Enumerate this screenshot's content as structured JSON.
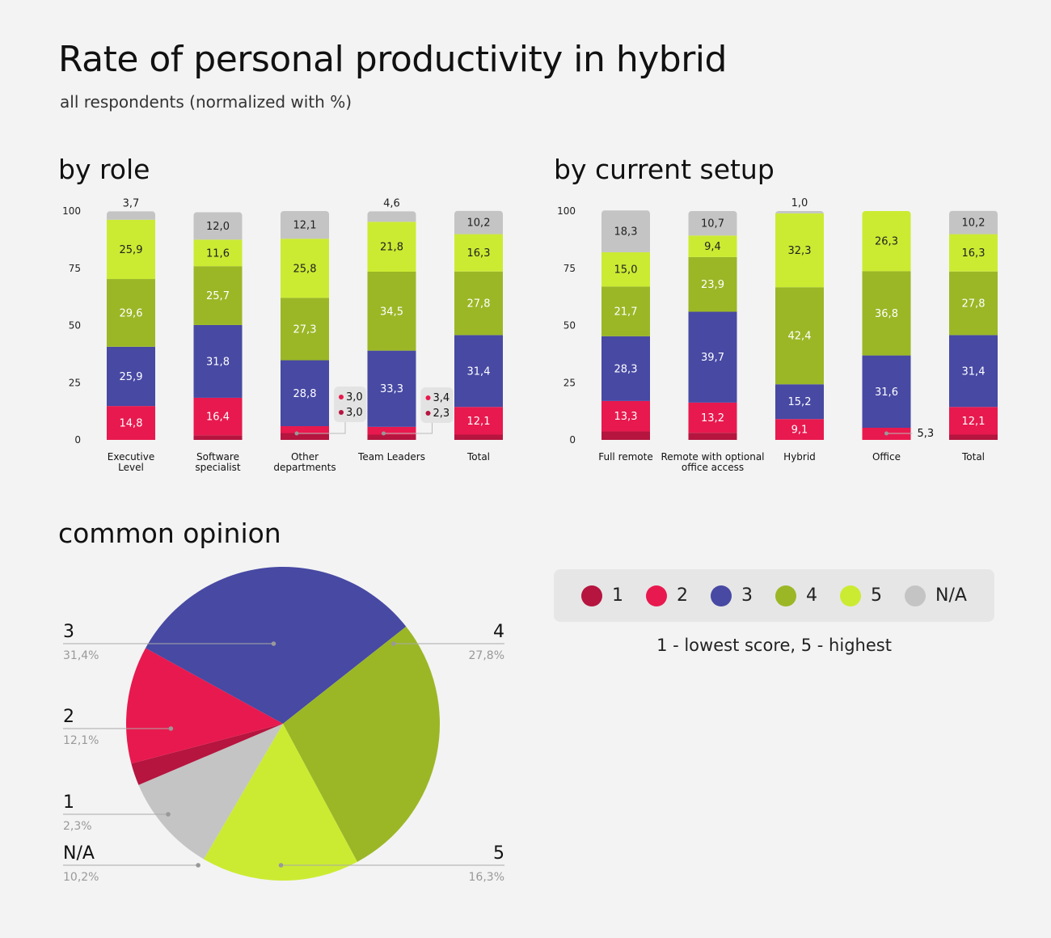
{
  "header": {
    "title": "Rate of personal productivity in hybrid",
    "subtitle": "all respondents (normalized with %)"
  },
  "colors": {
    "1": "#b5153f",
    "2": "#e8194e",
    "3": "#4749a3",
    "4": "#9bb726",
    "5": "#cbeb32",
    "NA": "#c4c4c4"
  },
  "legend": {
    "items": [
      {
        "key": "1",
        "label": "1"
      },
      {
        "key": "2",
        "label": "2"
      },
      {
        "key": "3",
        "label": "3"
      },
      {
        "key": "4",
        "label": "4"
      },
      {
        "key": "5",
        "label": "5"
      },
      {
        "key": "NA",
        "label": "N/A"
      }
    ],
    "note": "1 - lowest score, 5 - highest"
  },
  "chart_data": [
    {
      "id": "by-role",
      "type": "bar",
      "stacked": true,
      "title": "by role",
      "ylim": [
        0,
        100
      ],
      "yticks": [
        "0",
        "25",
        "50",
        "75",
        "100"
      ],
      "categories": [
        [
          "Executive",
          "Level"
        ],
        [
          "Software",
          "specialist"
        ],
        [
          "Other",
          "departments"
        ],
        [
          "Team Leaders"
        ],
        [
          "Total"
        ]
      ],
      "series": [
        {
          "name": "1",
          "values": [
            0,
            2.0,
            3.0,
            2.3,
            2.3
          ]
        },
        {
          "name": "2",
          "values": [
            14.8,
            16.4,
            3.0,
            3.4,
            12.1
          ]
        },
        {
          "name": "3",
          "values": [
            25.9,
            31.8,
            28.8,
            33.3,
            31.4
          ]
        },
        {
          "name": "4",
          "values": [
            29.6,
            25.7,
            27.3,
            34.5,
            27.8
          ]
        },
        {
          "name": "5",
          "values": [
            25.9,
            11.6,
            25.8,
            21.8,
            16.3
          ]
        },
        {
          "name": "NA",
          "values": [
            3.7,
            12.0,
            12.1,
            4.6,
            10.2
          ]
        }
      ],
      "labels": [
        {
          "1": "",
          "2": "14,8",
          "3": "25,9",
          "4": "29,6",
          "5": "25,9",
          "NA": "3,7"
        },
        {
          "1": "",
          "2": "16,4",
          "3": "31,8",
          "4": "25,7",
          "5": "11,6",
          "NA": "12,0"
        },
        {
          "1": "3,0",
          "2": "3,0",
          "3": "28,8",
          "4": "27,3",
          "5": "25,8",
          "NA": "12,1"
        },
        {
          "1": "2,3",
          "2": "3,4",
          "3": "33,3",
          "4": "34,5",
          "5": "21,8",
          "NA": "4,6"
        },
        {
          "1": "",
          "2": "12,1",
          "3": "31,4",
          "4": "27,8",
          "5": "16,3",
          "NA": "10,2"
        }
      ]
    },
    {
      "id": "by-setup",
      "type": "bar",
      "stacked": true,
      "title": "by current setup",
      "ylim": [
        0,
        100
      ],
      "yticks": [
        "0",
        "25",
        "50",
        "75",
        "100"
      ],
      "categories": [
        [
          "Full remote"
        ],
        [
          "Remote with optional",
          "office access"
        ],
        [
          "Hybrid"
        ],
        [
          "Office"
        ],
        [
          "Total"
        ]
      ],
      "series": [
        {
          "name": "1",
          "values": [
            3.7,
            3.1,
            0,
            0,
            2.3
          ]
        },
        {
          "name": "2",
          "values": [
            13.3,
            13.2,
            9.1,
            5.3,
            12.1
          ]
        },
        {
          "name": "3",
          "values": [
            28.3,
            39.7,
            15.2,
            31.6,
            31.4
          ]
        },
        {
          "name": "4",
          "values": [
            21.7,
            23.9,
            42.4,
            36.8,
            27.8
          ]
        },
        {
          "name": "5",
          "values": [
            15.0,
            9.4,
            32.3,
            26.3,
            16.3
          ]
        },
        {
          "name": "NA",
          "values": [
            18.3,
            10.7,
            1.0,
            0,
            10.2
          ]
        }
      ],
      "labels": [
        {
          "1": "",
          "2": "13,3",
          "3": "28,3",
          "4": "21,7",
          "5": "15,0",
          "NA": "18,3"
        },
        {
          "1": "",
          "2": "13,2",
          "3": "39,7",
          "4": "23,9",
          "5": "9,4",
          "NA": "10,7"
        },
        {
          "1": "",
          "2": "9,1",
          "3": "15,2",
          "4": "42,4",
          "5": "32,3",
          "NA": "1,0"
        },
        {
          "1": "",
          "2": "5,3",
          "3": "31,6",
          "4": "36,8",
          "5": "26,3",
          "NA": ""
        },
        {
          "1": "",
          "2": "12,1",
          "3": "31,4",
          "4": "27,8",
          "5": "16,3",
          "NA": "10,2"
        }
      ]
    },
    {
      "id": "common-opinion",
      "type": "pie",
      "title": "common opinion",
      "slices": [
        {
          "name": "3",
          "value": 31.4,
          "label": "3",
          "pct": "31,4%"
        },
        {
          "name": "4",
          "value": 27.8,
          "label": "4",
          "pct": "27,8%"
        },
        {
          "name": "5",
          "value": 16.3,
          "label": "5",
          "pct": "16,3%"
        },
        {
          "name": "NA",
          "value": 10.2,
          "label": "N/A",
          "pct": "10,2%"
        },
        {
          "name": "1",
          "value": 2.3,
          "label": "1",
          "pct": "2,3%"
        },
        {
          "name": "2",
          "value": 12.1,
          "label": "2",
          "pct": "12,1%"
        }
      ]
    }
  ]
}
